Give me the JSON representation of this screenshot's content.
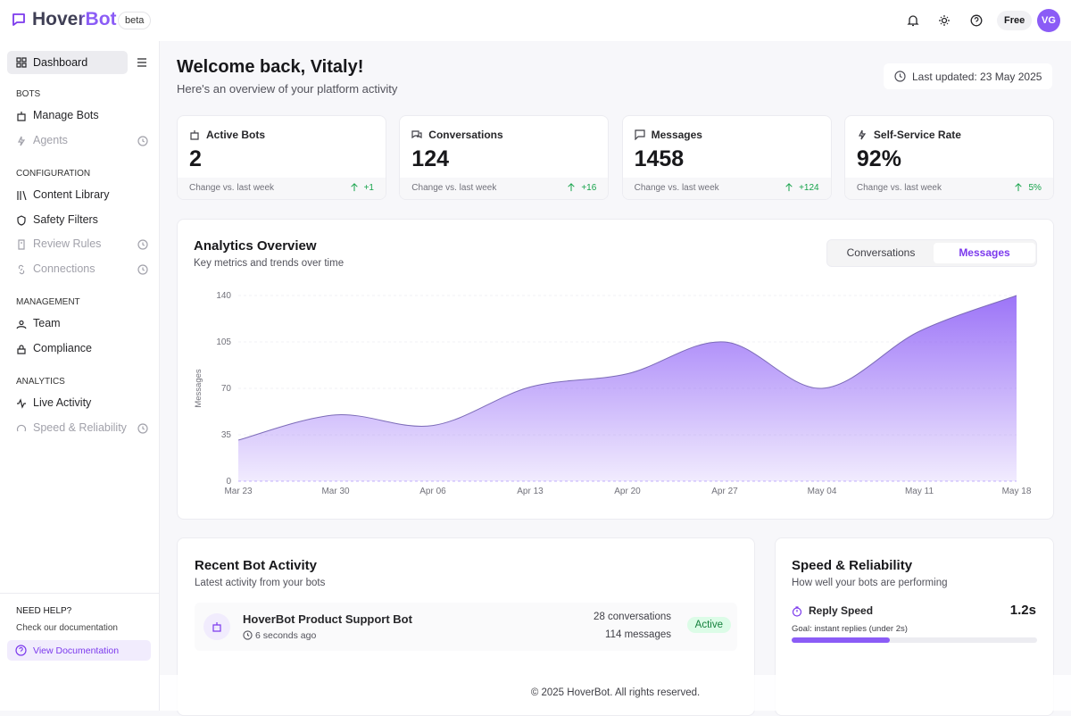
{
  "brand": {
    "name": "HoverBot",
    "badge": "beta"
  },
  "topbar": {
    "plan": "Free",
    "avatar": "VG"
  },
  "sidebar": {
    "home": "Dashboard",
    "sections": [
      {
        "title": "BOTS",
        "items": [
          {
            "label": "Manage Bots",
            "disabled": false
          },
          {
            "label": "Agents",
            "disabled": true
          }
        ]
      },
      {
        "title": "CONFIGURATION",
        "items": [
          {
            "label": "Content Library",
            "disabled": false
          },
          {
            "label": "Safety Filters",
            "disabled": false
          },
          {
            "label": "Review Rules",
            "disabled": true
          },
          {
            "label": "Connections",
            "disabled": true
          }
        ]
      },
      {
        "title": "MANAGEMENT",
        "items": [
          {
            "label": "Team",
            "disabled": false
          },
          {
            "label": "Compliance",
            "disabled": false
          }
        ]
      },
      {
        "title": "ANALYTICS",
        "items": [
          {
            "label": "Live Activity",
            "disabled": false
          },
          {
            "label": "Speed & Reliability",
            "disabled": true
          }
        ]
      }
    ],
    "help": {
      "title": "NEED HELP?",
      "text": "Check our documentation",
      "link": "View Documentation"
    }
  },
  "header": {
    "title": "Welcome back, Vitaly!",
    "subtitle": "Here's an overview of your platform activity",
    "updated": "Last updated: 23 May 2025"
  },
  "stats": [
    {
      "label": "Active Bots",
      "value": "2",
      "note": "Change vs. last week",
      "change": "+1"
    },
    {
      "label": "Conversations",
      "value": "124",
      "note": "Change vs. last week",
      "change": "+16"
    },
    {
      "label": "Messages",
      "value": "1458",
      "note": "Change vs. last week",
      "change": "+124"
    },
    {
      "label": "Self-Service Rate",
      "value": "92%",
      "note": "Change vs. last week",
      "change": "5%"
    }
  ],
  "chart_data": {
    "type": "area",
    "title": "Analytics Overview",
    "subtitle": "Key metrics and trends over time",
    "tabs": [
      "Conversations",
      "Messages"
    ],
    "active_tab": 1,
    "y_label": "Messages",
    "categories": [
      "Mar 23",
      "Mar 30",
      "Apr 06",
      "Apr 13",
      "Apr 20",
      "Apr 27",
      "May 04",
      "May 11",
      "May 18"
    ],
    "values": [
      31,
      50,
      42,
      71,
      81,
      105,
      70,
      113,
      140
    ],
    "color": "#8b5cf6",
    "ylim": [
      0,
      140
    ],
    "yticks": [
      0,
      35,
      70,
      105,
      140
    ],
    "grid": true
  },
  "activity": {
    "title": "Recent Bot Activity",
    "subtitle": "Latest activity from your bots",
    "items": [
      {
        "name": "HoverBot Product Support Bot",
        "time": "6 seconds ago",
        "conversations": "28 conversations",
        "messages": "114 messages",
        "status": "Active"
      }
    ]
  },
  "speed": {
    "title": "Speed & Reliability",
    "subtitle": "How well your bots are performing",
    "metrics": [
      {
        "label": "Reply Speed",
        "value": "1.2s",
        "goal": "Goal: instant replies (under 2s)"
      }
    ]
  },
  "footer": "© 2025 HoverBot. All rights reserved."
}
